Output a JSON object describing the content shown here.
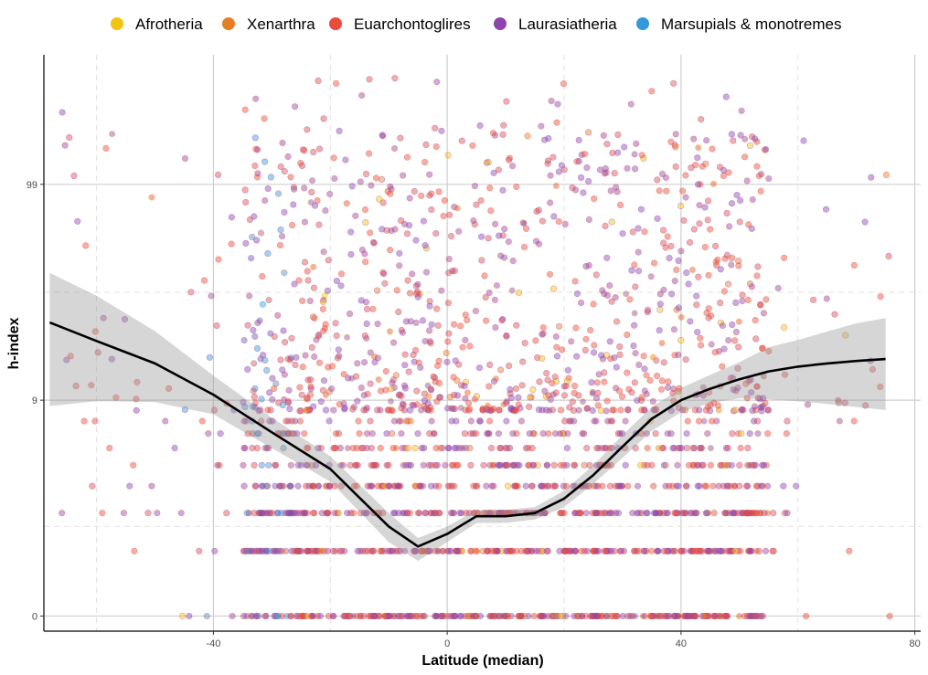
{
  "chart_data": {
    "type": "scatter",
    "xlabel": "Latitude (median)",
    "ylabel": "h-index",
    "x_ticks": [
      -40,
      0,
      40,
      80
    ],
    "x_tick_labels": [
      "-40",
      "0",
      "40",
      "80"
    ],
    "y_ticks": [
      0,
      9,
      99
    ],
    "y_tick_labels": [
      "0",
      "9",
      "99"
    ],
    "y_scale": "log10(y+1)",
    "xlim": [
      -69,
      81
    ],
    "ylim_transformed": [
      -0.07,
      2.6
    ],
    "grid": true,
    "legend_position": "top",
    "series": [
      {
        "name": "Afrotheria",
        "color": "#F1C40F"
      },
      {
        "name": "Xenarthra",
        "color": "#E67E22"
      },
      {
        "name": "Euarchontoglires",
        "color": "#E74C3C"
      },
      {
        "name": "Laurasiatheria",
        "color": "#8E44AD"
      },
      {
        "name": "Marsupials & monotremes",
        "color": "#3498DB"
      }
    ],
    "smooth_fit": {
      "x": [
        -68,
        -60,
        -50,
        -40,
        -30,
        -20,
        -10,
        -5,
        0,
        5,
        10,
        15,
        20,
        25,
        30,
        35,
        40,
        45,
        50,
        55,
        60,
        65,
        70,
        75
      ],
      "y": [
        21.9,
        17.8,
        13.8,
        9.6,
        6.1,
        3.8,
        1.6,
        1.1,
        1.4,
        1.9,
        1.9,
        2.0,
        2.5,
        3.5,
        5.1,
        7.2,
        9.0,
        10.3,
        11.5,
        12.6,
        13.3,
        13.8,
        14.2,
        14.5
      ],
      "ci_upper": [
        37.9,
        29.5,
        19.9,
        12.0,
        7.3,
        4.5,
        2.0,
        1.3,
        1.6,
        2.1,
        2.1,
        2.2,
        2.8,
        4.0,
        5.9,
        8.3,
        10.4,
        12.1,
        14.0,
        16.6,
        18.0,
        19.8,
        21.7,
        23.0
      ],
      "ci_lower": [
        8.4,
        8.9,
        8.8,
        7.6,
        5.0,
        3.2,
        1.2,
        0.8,
        1.2,
        1.7,
        1.7,
        1.8,
        2.2,
        3.1,
        4.4,
        6.2,
        7.8,
        8.7,
        9.2,
        9.1,
        8.9,
        8.6,
        8.3,
        8.0
      ]
    }
  }
}
